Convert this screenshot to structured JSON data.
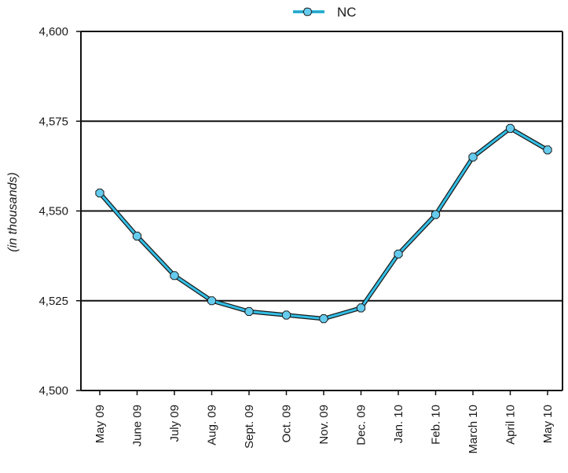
{
  "chart_data": {
    "type": "line",
    "title": "",
    "xlabel": "",
    "ylabel": "(in thousands)",
    "legend": {
      "position": "top-center",
      "entries": [
        "NC"
      ]
    },
    "categories": [
      "May 09",
      "June 09",
      "July 09",
      "Aug. 09",
      "Sept. 09",
      "Oct. 09",
      "Nov. 09",
      "Dec. 09",
      "Jan. 10",
      "Feb. 10",
      "March 10",
      "April 10",
      "May 10"
    ],
    "series": [
      {
        "name": "NC",
        "color": "#33bfe6",
        "marker_color": "#66ccee",
        "values": [
          4555,
          4543,
          4532,
          4525,
          4522,
          4521,
          4520,
          4523,
          4538,
          4549,
          4565,
          4573,
          4567
        ]
      }
    ],
    "ylim": [
      4500,
      4600
    ],
    "yticks": [
      4500,
      4525,
      4550,
      4575,
      4600
    ],
    "ytick_labels": [
      "4,500",
      "4,525",
      "4,550",
      "4,575",
      "4,600"
    ],
    "grid": "horizontal"
  }
}
